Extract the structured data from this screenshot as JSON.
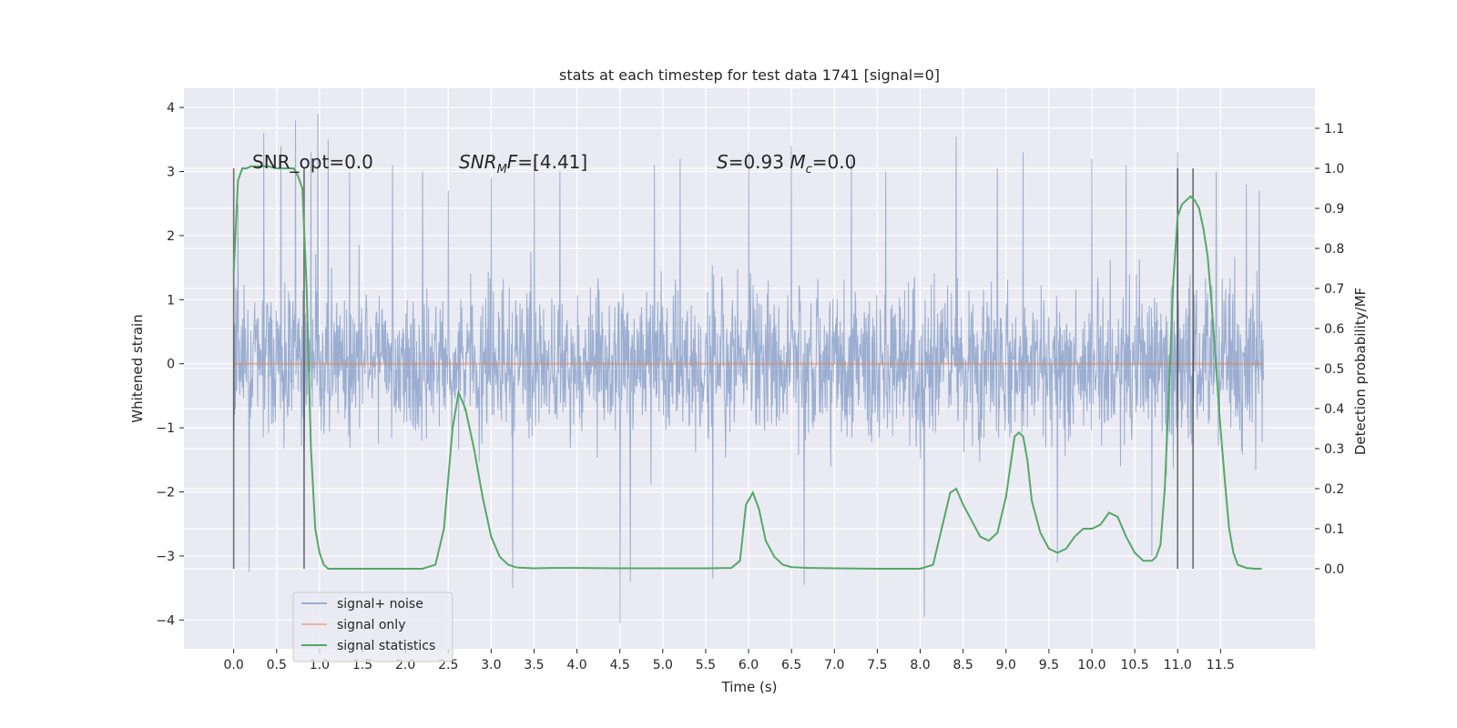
{
  "chart_data": {
    "type": "line",
    "title": "stats at each timestep for test data 1741 [signal=0]",
    "xlabel": "Time (s)",
    "ylabel_left": "Whitened strain",
    "ylabel_right": "Detection probability/MF",
    "xlim": [
      -0.58,
      12.6
    ],
    "ylim_left": [
      -4.45,
      4.3
    ],
    "ylim_right": [
      -0.2,
      1.2
    ],
    "xticks": [
      0.0,
      0.5,
      1.0,
      1.5,
      2.0,
      2.5,
      3.0,
      3.5,
      4.0,
      4.5,
      5.0,
      5.5,
      6.0,
      6.5,
      7.0,
      7.5,
      8.0,
      8.5,
      9.0,
      9.5,
      10.0,
      10.5,
      11.0,
      11.5
    ],
    "xtick_labels": [
      "0.0",
      "0.5",
      "1.0",
      "1.5",
      "2.0",
      "2.5",
      "3.0",
      "3.5",
      "4.0",
      "4.5",
      "5.0",
      "5.5",
      "6.0",
      "6.5",
      "7.0",
      "7.5",
      "8.0",
      "8.5",
      "9.0",
      "9.5",
      "10.0",
      "10.5",
      "11.0",
      "11.5"
    ],
    "yticks_left": [
      -4,
      -3,
      -2,
      -1,
      0,
      1,
      2,
      3,
      4
    ],
    "ytick_labels_left": [
      "−4",
      "−3",
      "−2",
      "−1",
      "0",
      "1",
      "2",
      "3",
      "4"
    ],
    "yticks_right": [
      0.0,
      0.1,
      0.2,
      0.3,
      0.4,
      0.5,
      0.6,
      0.7,
      0.8,
      0.9,
      1.0,
      1.1
    ],
    "ytick_labels_right": [
      "0.0",
      "0.1",
      "0.2",
      "0.3",
      "0.4",
      "0.5",
      "0.6",
      "0.7",
      "0.8",
      "0.9",
      "1.0",
      "1.1"
    ],
    "grid": true,
    "legend_position": "bottom-left",
    "annotations": [
      {
        "text": "SNR_opt=0.0",
        "x": 0.22,
        "y": 3.15
      },
      {
        "text": "SNR_MF=[4.41]",
        "x": 2.63,
        "y": 3.15
      },
      {
        "text": "S=0.93   M_c=0.0",
        "x": 5.65,
        "y": 3.15
      }
    ],
    "vertical_lines": [
      0.0,
      0.82,
      11.0,
      11.18
    ],
    "series": [
      {
        "name": "signal+ noise",
        "color": "#4c72b0",
        "axis": "left",
        "t_range": [
          0.0,
          12.0
        ],
        "envelope_typical": 1.9,
        "peaks": [
          {
            "x": 0.05,
            "y": 2.5
          },
          {
            "x": 0.18,
            "y": -3.25
          },
          {
            "x": 0.35,
            "y": 3.6
          },
          {
            "x": 0.55,
            "y": 3.4
          },
          {
            "x": 0.72,
            "y": 3.8
          },
          {
            "x": 0.9,
            "y": 3.3
          },
          {
            "x": 0.98,
            "y": 3.9
          },
          {
            "x": 1.1,
            "y": 3.5
          },
          {
            "x": 1.35,
            "y": 3.0
          },
          {
            "x": 1.85,
            "y": 3.1
          },
          {
            "x": 2.2,
            "y": 3.0
          },
          {
            "x": 2.5,
            "y": 2.7
          },
          {
            "x": 3.0,
            "y": 2.9
          },
          {
            "x": 3.25,
            "y": -3.5
          },
          {
            "x": 3.5,
            "y": 3.2
          },
          {
            "x": 3.8,
            "y": 3.0
          },
          {
            "x": 4.5,
            "y": -4.05
          },
          {
            "x": 4.62,
            "y": -3.4
          },
          {
            "x": 4.9,
            "y": 3.1
          },
          {
            "x": 5.2,
            "y": 3.2
          },
          {
            "x": 5.58,
            "y": -3.35
          },
          {
            "x": 6.0,
            "y": 3.3
          },
          {
            "x": 6.5,
            "y": 3.4
          },
          {
            "x": 6.65,
            "y": -3.45
          },
          {
            "x": 7.2,
            "y": 3.2
          },
          {
            "x": 7.6,
            "y": 3.0
          },
          {
            "x": 8.05,
            "y": -3.95
          },
          {
            "x": 8.42,
            "y": 3.55
          },
          {
            "x": 8.9,
            "y": 3.05
          },
          {
            "x": 9.2,
            "y": 3.3
          },
          {
            "x": 9.6,
            "y": -3.1
          },
          {
            "x": 10.0,
            "y": 3.2
          },
          {
            "x": 10.4,
            "y": 3.1
          },
          {
            "x": 10.7,
            "y": -3.0
          },
          {
            "x": 11.0,
            "y": 3.3
          },
          {
            "x": 11.45,
            "y": 3.0
          },
          {
            "x": 11.8,
            "y": 2.8
          },
          {
            "x": 11.95,
            "y": 2.7
          }
        ]
      },
      {
        "name": "signal only",
        "color": "#dd8452",
        "axis": "left",
        "x": [
          0.0,
          12.0
        ],
        "y": [
          0.0,
          0.0
        ]
      },
      {
        "name": "signal statistics",
        "color": "#55a868",
        "axis": "right",
        "x": [
          0.0,
          0.05,
          0.1,
          0.15,
          0.2,
          0.3,
          0.4,
          0.5,
          0.6,
          0.7,
          0.75,
          0.8,
          0.85,
          0.9,
          0.95,
          1.0,
          1.05,
          1.1,
          1.2,
          1.4,
          1.6,
          1.8,
          2.0,
          2.2,
          2.35,
          2.45,
          2.55,
          2.62,
          2.7,
          2.8,
          2.9,
          3.0,
          3.1,
          3.2,
          3.3,
          3.5,
          3.7,
          4.0,
          4.5,
          5.0,
          5.5,
          5.8,
          5.9,
          5.97,
          6.05,
          6.12,
          6.2,
          6.3,
          6.4,
          6.5,
          6.7,
          7.0,
          7.5,
          8.0,
          8.15,
          8.25,
          8.35,
          8.42,
          8.5,
          8.6,
          8.7,
          8.8,
          8.9,
          9.0,
          9.1,
          9.15,
          9.2,
          9.25,
          9.3,
          9.4,
          9.5,
          9.6,
          9.7,
          9.8,
          9.9,
          10.0,
          10.1,
          10.2,
          10.3,
          10.4,
          10.5,
          10.6,
          10.7,
          10.75,
          10.8,
          10.85,
          10.9,
          10.95,
          11.0,
          11.05,
          11.1,
          11.15,
          11.2,
          11.25,
          11.3,
          11.35,
          11.4,
          11.45,
          11.5,
          11.55,
          11.6,
          11.65,
          11.7,
          11.8,
          11.9,
          11.98
        ],
        "y": [
          0.74,
          0.97,
          1.0,
          1.0,
          1.005,
          1.005,
          1.005,
          1.0,
          1.0,
          1.0,
          0.98,
          0.95,
          0.7,
          0.3,
          0.1,
          0.04,
          0.01,
          0.0,
          0.0,
          0.0,
          0.0,
          0.0,
          0.0,
          0.0,
          0.01,
          0.1,
          0.35,
          0.44,
          0.4,
          0.3,
          0.18,
          0.08,
          0.03,
          0.01,
          0.003,
          0.001,
          0.002,
          0.002,
          0.001,
          0.001,
          0.001,
          0.002,
          0.02,
          0.16,
          0.19,
          0.15,
          0.07,
          0.03,
          0.01,
          0.004,
          0.002,
          0.001,
          0.0,
          0.0,
          0.01,
          0.1,
          0.19,
          0.2,
          0.16,
          0.12,
          0.08,
          0.07,
          0.09,
          0.18,
          0.33,
          0.34,
          0.33,
          0.27,
          0.17,
          0.09,
          0.05,
          0.04,
          0.05,
          0.08,
          0.1,
          0.1,
          0.11,
          0.14,
          0.13,
          0.08,
          0.04,
          0.02,
          0.02,
          0.03,
          0.06,
          0.2,
          0.45,
          0.72,
          0.88,
          0.91,
          0.92,
          0.93,
          0.92,
          0.9,
          0.85,
          0.78,
          0.65,
          0.5,
          0.35,
          0.22,
          0.1,
          0.04,
          0.01,
          0.002,
          0.0,
          0.0
        ]
      }
    ]
  }
}
